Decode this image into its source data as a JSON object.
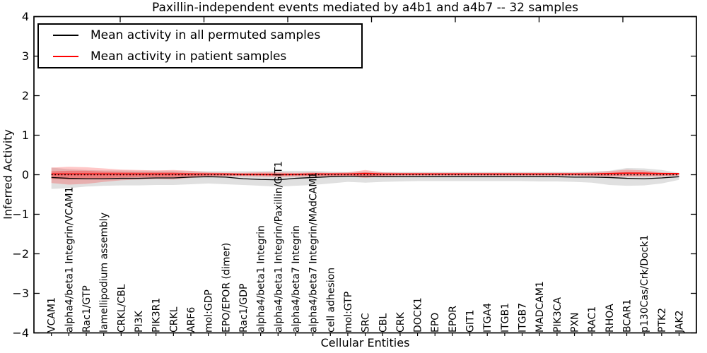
{
  "title": "Paxillin-independent events mediated by a4b1 and a4b7 -- 32 samples",
  "chart_data": {
    "type": "line",
    "title": "Paxillin-independent events mediated by a4b1 and a4b7 -- 32 samples",
    "xlabel": "Cellular Entities",
    "ylabel": "Inferred Activity",
    "ylim": [
      -4,
      4
    ],
    "grid": false,
    "legend_position": "upper left",
    "yticks": [
      -4,
      -3,
      -2,
      -1,
      0,
      1,
      2,
      3,
      4
    ],
    "ytick_labels": [
      "−4",
      "−3",
      "−2",
      "−1",
      "0",
      "1",
      "2",
      "3",
      "4"
    ],
    "legend": [
      {
        "label": "Mean activity in all permuted samples",
        "color": "#000000"
      },
      {
        "label": "Mean activity in patient samples",
        "color": "#ff0000"
      }
    ],
    "categories": [
      "VCAM1",
      "alpha4/beta1 Integrin/VCAM1",
      "Rac1/GTP",
      "lamellipodium assembly",
      "CRKL/CBL",
      "PI3K",
      "PIK3R1",
      "CRKL",
      "ARF6",
      "mol:GDP",
      "EPO/EPOR (dimer)",
      "Rac1/GDP",
      "alpha4/beta1 Integrin",
      "alpha4/beta1 Integrin/Paxillin/GIT1",
      "alpha4/beta7 Integrin",
      "alpha4/beta7 Integrin/MAdCAM1",
      "cell adhesion",
      "mol:GTP",
      "SRC",
      "CBL",
      "CRK",
      "DOCK1",
      "EPO",
      "EPOR",
      "GIT1",
      "ITGA4",
      "ITGB1",
      "ITGB7",
      "MADCAM1",
      "PIK3CA",
      "PXN",
      "RAC1",
      "RHOA",
      "BCAR1",
      "p130Cas/Crk/Dock1",
      "PTK2",
      "JAK2"
    ],
    "series": [
      {
        "name": "Mean activity in all permuted samples",
        "color": "#000000",
        "style": "solid",
        "width": 1.3,
        "values": [
          -0.07,
          -0.09,
          -0.1,
          -0.1,
          -0.09,
          -0.09,
          -0.08,
          -0.08,
          -0.06,
          -0.05,
          -0.06,
          -0.1,
          -0.12,
          -0.13,
          -0.09,
          -0.07,
          -0.05,
          -0.04,
          -0.04,
          -0.05,
          -0.05,
          -0.05,
          -0.05,
          -0.05,
          -0.05,
          -0.05,
          -0.05,
          -0.05,
          -0.05,
          -0.05,
          -0.06,
          -0.06,
          -0.07,
          -0.09,
          -0.1,
          -0.08,
          -0.05
        ]
      },
      {
        "name": "Mean activity in patient samples",
        "color": "#ff0000",
        "style": "solid",
        "width": 1.6,
        "values": [
          0.02,
          0.02,
          0.02,
          0.02,
          0.02,
          0.02,
          0.02,
          0.02,
          0.02,
          0.02,
          0.02,
          0.01,
          0.01,
          0.01,
          0.01,
          0.02,
          0.02,
          0.02,
          0.03,
          0.02,
          0.02,
          0.02,
          0.02,
          0.02,
          0.02,
          0.02,
          0.02,
          0.02,
          0.02,
          0.02,
          0.02,
          0.02,
          0.03,
          0.04,
          0.04,
          0.03,
          0.03
        ]
      },
      {
        "name": "zero-reference",
        "color": "#000000",
        "style": "dotted",
        "width": 1.6,
        "values": 0
      }
    ],
    "bands": [
      {
        "name": "permuted-range",
        "color": "rgba(0,0,0,0.12)",
        "upper": [
          0.18,
          0.14,
          0.12,
          0.11,
          0.11,
          0.1,
          0.1,
          0.1,
          0.09,
          0.09,
          0.09,
          0.09,
          0.09,
          0.1,
          0.1,
          0.1,
          0.08,
          0.07,
          0.08,
          0.07,
          0.07,
          0.07,
          0.07,
          0.07,
          0.07,
          0.07,
          0.07,
          0.07,
          0.07,
          0.07,
          0.07,
          0.08,
          0.1,
          0.17,
          0.16,
          0.12,
          0.05
        ],
        "lower": [
          -0.36,
          -0.34,
          -0.3,
          -0.28,
          -0.27,
          -0.27,
          -0.26,
          -0.26,
          -0.24,
          -0.22,
          -0.24,
          -0.26,
          -0.28,
          -0.3,
          -0.28,
          -0.26,
          -0.22,
          -0.18,
          -0.2,
          -0.18,
          -0.17,
          -0.16,
          -0.16,
          -0.16,
          -0.16,
          -0.16,
          -0.16,
          -0.16,
          -0.17,
          -0.17,
          -0.18,
          -0.2,
          -0.26,
          -0.28,
          -0.27,
          -0.22,
          -0.13
        ]
      },
      {
        "name": "patient-range",
        "color": "rgba(255,0,0,0.22)",
        "upper": [
          0.18,
          0.2,
          0.19,
          0.16,
          0.13,
          0.12,
          0.11,
          0.12,
          0.1,
          0.06,
          0.05,
          0.05,
          0.06,
          0.06,
          0.05,
          0.06,
          0.05,
          0.06,
          0.12,
          0.06,
          0.05,
          0.05,
          0.05,
          0.05,
          0.05,
          0.05,
          0.05,
          0.05,
          0.05,
          0.05,
          0.05,
          0.06,
          0.09,
          0.13,
          0.11,
          0.06,
          0.04
        ],
        "lower": [
          -0.21,
          -0.25,
          -0.23,
          -0.18,
          -0.14,
          -0.12,
          -0.11,
          -0.12,
          -0.08,
          -0.05,
          -0.04,
          -0.04,
          -0.05,
          -0.06,
          -0.05,
          -0.05,
          -0.04,
          -0.04,
          -0.08,
          -0.04,
          -0.03,
          -0.03,
          -0.03,
          -0.03,
          -0.03,
          -0.03,
          -0.03,
          -0.03,
          -0.03,
          -0.03,
          -0.03,
          -0.04,
          -0.05,
          -0.05,
          -0.05,
          -0.04,
          -0.02
        ]
      },
      {
        "name": "patient-core",
        "color": "rgba(255,0,0,0.28)",
        "upper": [
          0.09,
          0.1,
          0.1,
          0.08,
          0.07,
          0.06,
          0.06,
          0.06,
          0.04,
          0.03,
          0.03,
          0.03,
          0.03,
          0.03,
          0.03,
          0.03,
          0.03,
          0.03,
          0.06,
          0.03,
          0.03,
          0.03,
          0.03,
          0.03,
          0.03,
          0.03,
          0.03,
          0.03,
          0.03,
          0.03,
          0.03,
          0.03,
          0.05,
          0.07,
          0.06,
          0.04,
          0.03
        ],
        "lower": [
          -0.1,
          -0.12,
          -0.11,
          -0.09,
          -0.07,
          -0.06,
          -0.06,
          -0.06,
          -0.04,
          -0.02,
          -0.02,
          -0.02,
          -0.02,
          -0.03,
          -0.02,
          -0.02,
          -0.02,
          -0.02,
          -0.04,
          -0.02,
          -0.01,
          -0.01,
          -0.01,
          -0.01,
          -0.01,
          -0.01,
          -0.01,
          -0.01,
          -0.01,
          -0.01,
          -0.01,
          -0.02,
          -0.02,
          -0.02,
          -0.02,
          -0.02,
          -0.01
        ]
      }
    ]
  }
}
